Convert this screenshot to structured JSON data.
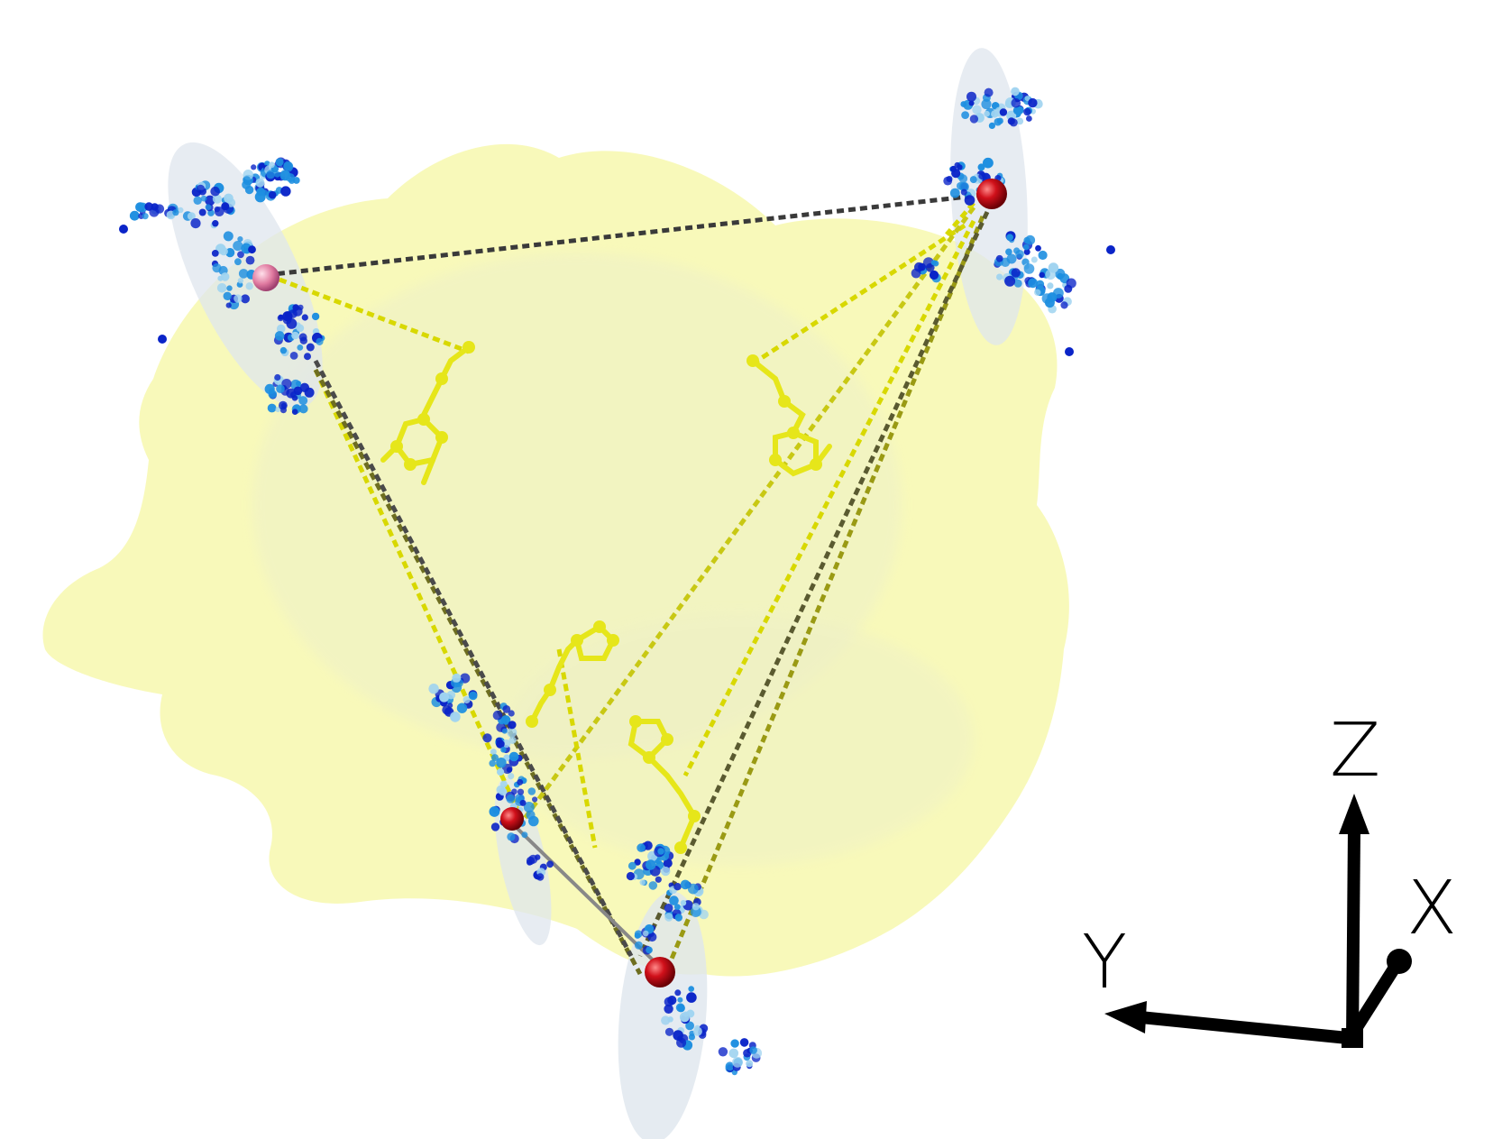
{
  "figure": {
    "description_free": true,
    "colors": {
      "protein_surface": "#f6f7b4",
      "ligand": "#e6e61a",
      "spin_label_center": "#c8101a",
      "spin_label_center_light": "#e07aa0",
      "cloud_dark": "#0a24c8",
      "cloud_mid": "#1e8fe0",
      "cloud_light": "#9fd3f0",
      "ellipsoid": "#dfe6ee",
      "distance_line_dark": "#3a3a3a",
      "distance_line_yellow": "#d8d800",
      "distance_line_olive": "#8a8a1a",
      "axis": "#000000"
    },
    "axes": {
      "z_label": "Z",
      "x_label": "X",
      "y_label": "Y"
    }
  }
}
